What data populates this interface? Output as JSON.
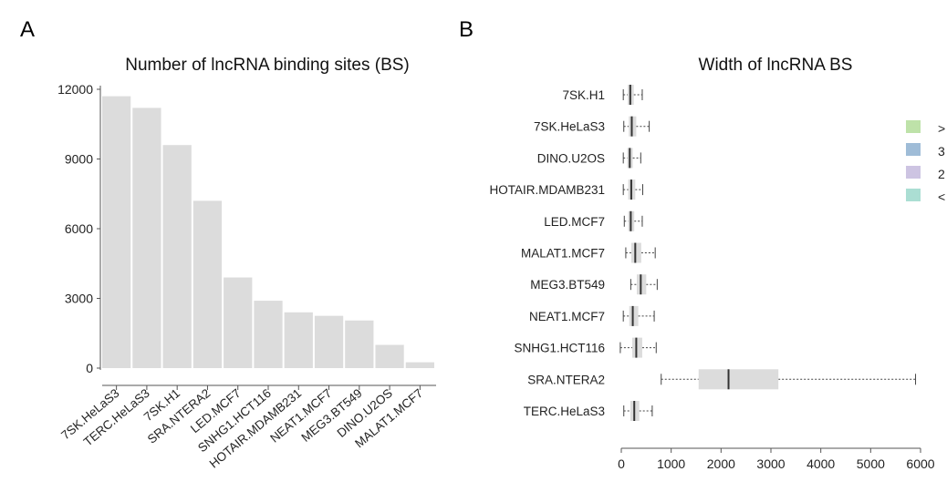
{
  "panels": {
    "a": "A",
    "b": "B"
  },
  "legend_glyphs": [
    ">",
    "3",
    "2",
    "<"
  ],
  "chart_data": [
    {
      "type": "bar",
      "title": "Number of lncRNA binding sites (BS)",
      "xlabel": "",
      "ylabel": "",
      "categories": [
        "7SK.HeLaS3",
        "TERC.HeLaS3",
        "7SK.H1",
        "SRA.NTERA2",
        "LED.MCF7",
        "SNHG1.HCT116",
        "HOTAIR.MDAMB231",
        "NEAT1.MCF7",
        "MEG3.BT549",
        "DINO.U2OS",
        "MALAT1.MCF7"
      ],
      "values": [
        11700,
        11200,
        9600,
        7200,
        3900,
        2900,
        2400,
        2250,
        2050,
        1000,
        250
      ],
      "ylim": [
        0,
        12000
      ],
      "yticks": [
        0,
        3000,
        6000,
        9000,
        12000
      ],
      "bar_color": "#dcdcdc",
      "grid": false
    },
    {
      "type": "boxplot",
      "title": "Width of lncRNA BS",
      "categories": [
        "7SK.H1",
        "7SK.HeLaS3",
        "DINO.U2OS",
        "HOTAIR.MDAMB231",
        "LED.MCF7",
        "MALAT1.MCF7",
        "MEG3.BT549",
        "NEAT1.MCF7",
        "SNHG1.HCT116",
        "SRA.NTERA2",
        "TERC.HeLaS3"
      ],
      "boxes": [
        {
          "min": 40,
          "q1": 130,
          "median": 180,
          "q3": 250,
          "max": 420
        },
        {
          "min": 50,
          "q1": 150,
          "median": 210,
          "q3": 300,
          "max": 560
        },
        {
          "min": 40,
          "q1": 120,
          "median": 170,
          "q3": 230,
          "max": 390
        },
        {
          "min": 40,
          "q1": 140,
          "median": 200,
          "q3": 280,
          "max": 430
        },
        {
          "min": 60,
          "q1": 140,
          "median": 190,
          "q3": 260,
          "max": 420
        },
        {
          "min": 90,
          "q1": 200,
          "median": 280,
          "q3": 400,
          "max": 680
        },
        {
          "min": 190,
          "q1": 310,
          "median": 390,
          "q3": 500,
          "max": 720
        },
        {
          "min": 40,
          "q1": 160,
          "median": 230,
          "q3": 340,
          "max": 660
        },
        {
          "min": -20,
          "q1": 220,
          "median": 300,
          "q3": 420,
          "max": 700
        },
        {
          "min": 800,
          "q1": 1550,
          "median": 2150,
          "q3": 3150,
          "max": 5900
        },
        {
          "min": 50,
          "q1": 180,
          "median": 260,
          "q3": 360,
          "max": 620
        }
      ],
      "xlim": [
        0,
        6000
      ],
      "xticks": [
        0,
        1000,
        2000,
        3000,
        4000,
        5000,
        6000
      ],
      "box_color": "#dcdcdc",
      "grid": false
    }
  ]
}
